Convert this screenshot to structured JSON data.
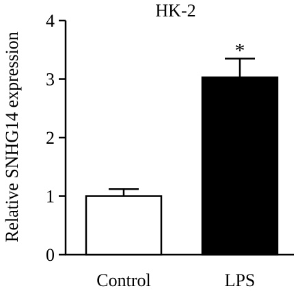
{
  "chart_data": {
    "type": "bar",
    "title": "HK-2",
    "xlabel": "",
    "ylabel": "Relative SNHG14 expression",
    "ylim": [
      0,
      4
    ],
    "yticks": [
      0,
      1,
      2,
      3,
      4
    ],
    "categories": [
      "Control",
      "LPS"
    ],
    "values": [
      1.0,
      3.03
    ],
    "errors": [
      0.12,
      0.32
    ],
    "bar_fills": [
      "#ffffff",
      "#000000"
    ],
    "significance": [
      "",
      "*"
    ]
  }
}
